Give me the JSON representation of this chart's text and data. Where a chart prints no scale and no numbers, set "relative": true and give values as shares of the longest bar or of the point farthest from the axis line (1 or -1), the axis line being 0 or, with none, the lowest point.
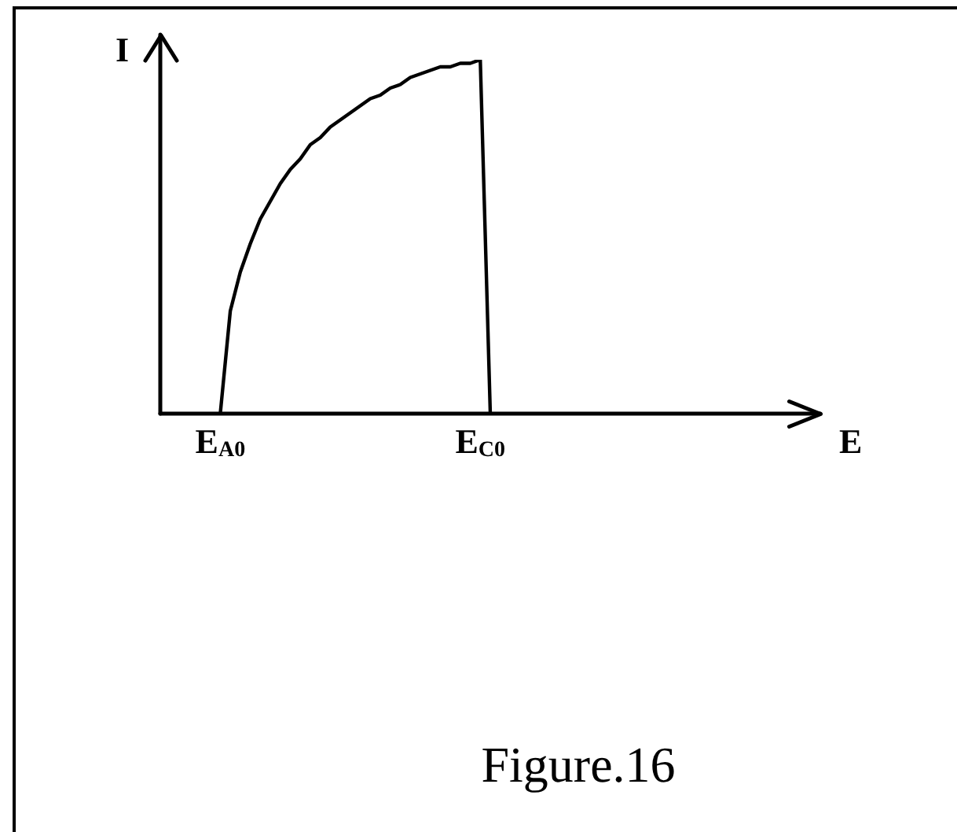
{
  "chart_data": {
    "type": "line",
    "xlabel": "E",
    "ylabel": "I",
    "annotations": [
      "Figure.16"
    ],
    "relative": true,
    "categories": [
      null,
      null,
      null,
      null,
      null,
      null,
      "E$_{A0}$",
      null,
      null,
      null,
      null,
      null,
      null,
      null,
      null,
      null,
      null,
      null,
      null,
      null,
      null,
      null,
      null,
      null,
      null,
      null,
      null,
      null,
      null,
      null,
      null,
      null,
      "E$_{C0}$",
      null,
      null,
      null,
      null,
      null,
      null,
      null,
      null,
      null,
      null,
      null,
      null,
      null,
      null,
      null,
      null,
      null,
      null,
      null,
      null,
      null,
      null,
      null,
      null,
      null,
      null,
      null,
      null,
      null,
      null,
      null,
      null,
      null,
      null
    ],
    "values": [
      null,
      null,
      null,
      null,
      null,
      null,
      0,
      0.29,
      0.4,
      0.48,
      0.55,
      0.6,
      0.65,
      0.69,
      0.72,
      0.76,
      0.78,
      0.81,
      0.83,
      0.85,
      0.87,
      0.89,
      0.9,
      0.92,
      0.93,
      0.95,
      0.96,
      0.97,
      0.98,
      0.98,
      0.99,
      0.99,
      1,
      0,
      null,
      null,
      null,
      null,
      null,
      null,
      null,
      null,
      null,
      null,
      null,
      null,
      null,
      null,
      null,
      null,
      null,
      null,
      null,
      null,
      null,
      null,
      null,
      null,
      null,
      null,
      null,
      null,
      null,
      null,
      null,
      null,
      null
    ],
    "color": "#000000",
    "tick_labels": "x"
  }
}
